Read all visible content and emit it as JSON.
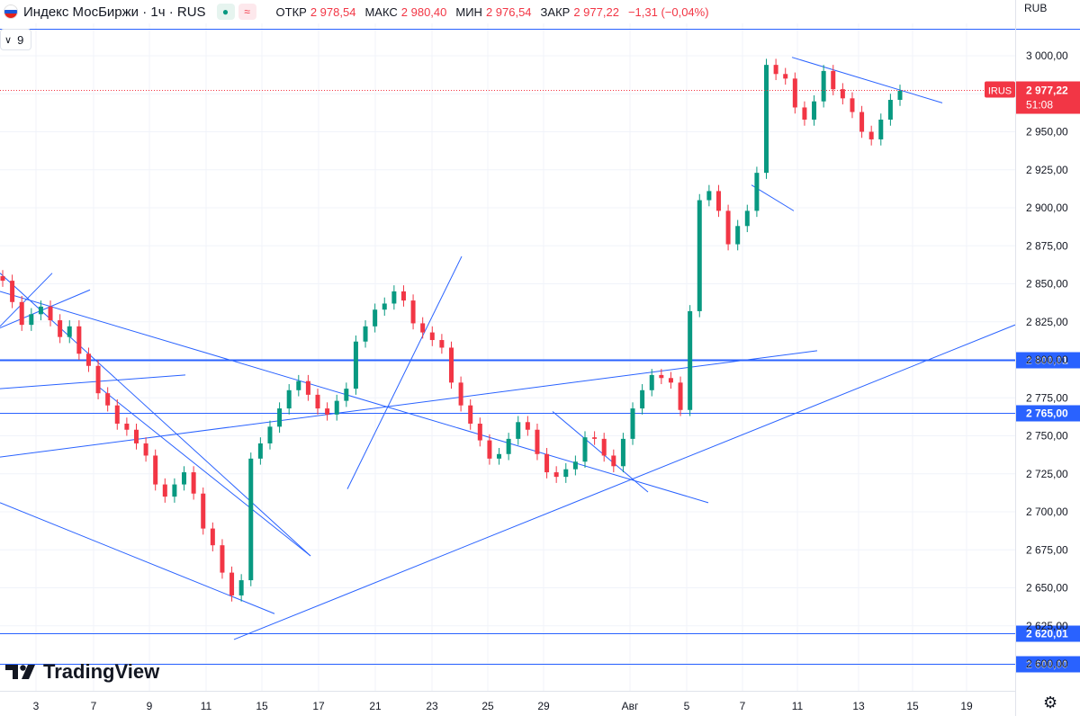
{
  "header": {
    "title": "Индекс МосБиржи · 1ч · RUS",
    "open_label": "ОТКР",
    "open": "2 978,54",
    "high_label": "МАКС",
    "high": "2 980,40",
    "low_label": "МИН",
    "low": "2 976,54",
    "close_label": "ЗАКР",
    "close": "2 977,22",
    "change": "−1,31 (−0,04%)"
  },
  "indicator": {
    "label": "9"
  },
  "currency": "RUB",
  "brand": "TradingView",
  "colors": {
    "up": "#089981",
    "down": "#f23645",
    "line": "#2962ff",
    "price": "#f23645"
  },
  "chart_data": {
    "type": "candlestick",
    "title": "Индекс МосБиржи · 1ч · RUS",
    "y_ticks": [
      "3 000,00",
      "2 975,00",
      "2 950,00",
      "2 925,00",
      "2 900,00",
      "2 875,00",
      "2 850,00",
      "2 825,00",
      "2 800,00",
      "2 775,00",
      "2 750,00",
      "2 725,00",
      "2 700,00",
      "2 675,00",
      "2 650,00",
      "2 625,00",
      "2 600,00"
    ],
    "y_tick_values": [
      3000,
      2975,
      2950,
      2925,
      2900,
      2875,
      2850,
      2825,
      2800,
      2775,
      2750,
      2725,
      2700,
      2675,
      2650,
      2625,
      2600
    ],
    "ylim": [
      2587,
      3030
    ],
    "x_ticks": [
      "3",
      "7",
      "9",
      "11",
      "15",
      "17",
      "21",
      "23",
      "25",
      "29",
      "Авг",
      "5",
      "7",
      "11",
      "13",
      "15",
      "19"
    ],
    "x_tick_index": [
      0,
      1,
      2,
      3,
      4,
      5,
      6,
      7,
      8,
      9,
      10,
      11,
      12,
      13,
      14,
      15,
      16
    ],
    "current_price": {
      "symbol": "IRUS",
      "value": 2977.22,
      "label": "2 977,22",
      "countdown": "51:08"
    },
    "levels": [
      {
        "value": 3018,
        "label": ""
      },
      {
        "value": 2800.01,
        "label": "2 800,01"
      },
      {
        "value": 2765.0,
        "label": "2 765,00"
      },
      {
        "value": 2620.01,
        "label": "2 620,01"
      },
      {
        "value": 2600.0,
        "label": "2 600,00"
      }
    ],
    "closes": [
      2852,
      2838,
      2823,
      2830,
      2835,
      2826,
      2815,
      2822,
      2804,
      2796,
      2778,
      2770,
      2758,
      2754,
      2745,
      2737,
      2718,
      2710,
      2718,
      2726,
      2712,
      2689,
      2678,
      2660,
      2645,
      2655,
      2735,
      2745,
      2756,
      2768,
      2780,
      2786,
      2777,
      2768,
      2764,
      2773,
      2781,
      2812,
      2822,
      2833,
      2837,
      2845,
      2839,
      2824,
      2818,
      2813,
      2808,
      2785,
      2770,
      2758,
      2747,
      2735,
      2738,
      2748,
      2759,
      2754,
      2738,
      2726,
      2723,
      2728,
      2733,
      2749,
      2748,
      2737,
      2730,
      2748,
      2768,
      2780,
      2790,
      2788,
      2785,
      2767,
      2832,
      2905,
      2911,
      2898,
      2876,
      2888,
      2898,
      2923,
      2994,
      2988,
      2985,
      2966,
      2958,
      2970,
      2990,
      2978,
      2972,
      2963,
      2950,
      2945,
      2958,
      2971,
      2977
    ]
  }
}
